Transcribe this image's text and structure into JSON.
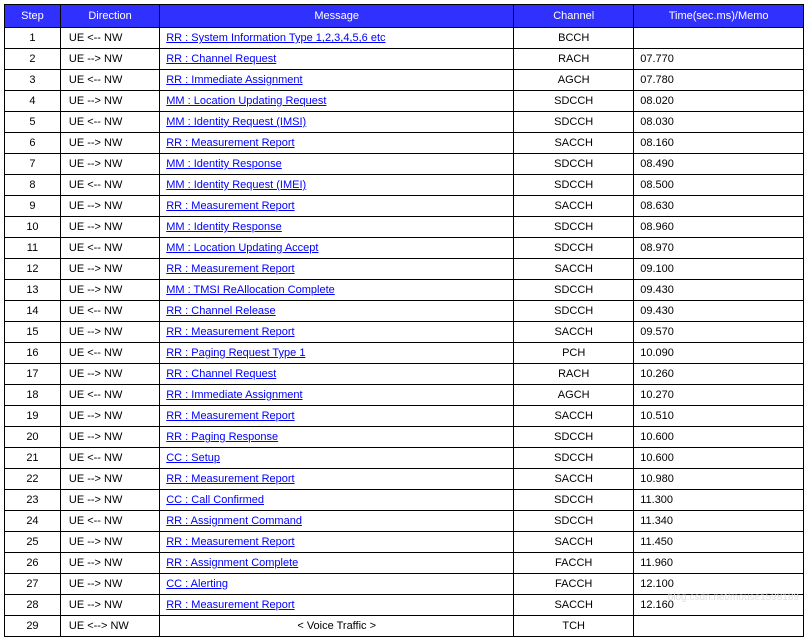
{
  "headers": {
    "step": "Step",
    "direction": "Direction",
    "message": "Message",
    "channel": "Channel",
    "time": "Time(sec.ms)/Memo"
  },
  "rows": [
    {
      "step": "1",
      "dir": "UE <-- NW",
      "msg": "RR  : System Information Type 1,2,3,4,5,6 etc",
      "link": true,
      "chan": "BCCH",
      "time": ""
    },
    {
      "step": "2",
      "dir": "UE --> NW",
      "msg": "RR  : Channel Request",
      "link": true,
      "chan": "RACH",
      "time": "07.770"
    },
    {
      "step": "3",
      "dir": "UE <-- NW",
      "msg": "RR  : Immediate Assignment",
      "link": true,
      "chan": "AGCH",
      "time": "07.780"
    },
    {
      "step": "4",
      "dir": "UE --> NW",
      "msg": "MM : Location Updating Request",
      "link": true,
      "chan": "SDCCH",
      "time": "08.020"
    },
    {
      "step": "5",
      "dir": "UE <-- NW",
      "msg": "MM : Identity Request (IMSI)",
      "link": true,
      "chan": "SDCCH",
      "time": "08.030"
    },
    {
      "step": "6",
      "dir": "UE --> NW",
      "msg": "RR  : Measurement Report",
      "link": true,
      "chan": "SACCH",
      "time": "08.160"
    },
    {
      "step": "7",
      "dir": "UE --> NW",
      "msg": "MM : Identity Response",
      "link": true,
      "chan": "SDCCH",
      "time": "08.490"
    },
    {
      "step": "8",
      "dir": "UE <-- NW",
      "msg": "MM : Identity Request (IMEI)",
      "link": true,
      "chan": "SDCCH",
      "time": "08.500"
    },
    {
      "step": "9",
      "dir": "UE --> NW",
      "msg": "RR  : Measurement Report",
      "link": true,
      "chan": "SACCH",
      "time": "08.630"
    },
    {
      "step": "10",
      "dir": "UE --> NW",
      "msg": "MM : Identity Response",
      "link": true,
      "chan": "SDCCH",
      "time": "08.960"
    },
    {
      "step": "11",
      "dir": "UE <-- NW",
      "msg": "MM : Location Updating Accept",
      "link": true,
      "chan": "SDCCH",
      "time": "08.970"
    },
    {
      "step": "12",
      "dir": "UE --> NW",
      "msg": "RR  : Measurement Report",
      "link": true,
      "chan": "SACCH",
      "time": "09.100"
    },
    {
      "step": "13",
      "dir": "UE --> NW",
      "msg": "MM : TMSI ReAllocation Complete",
      "link": true,
      "chan": "SDCCH",
      "time": "09.430"
    },
    {
      "step": "14",
      "dir": "UE <-- NW",
      "msg": "RR  : Channel Release",
      "link": true,
      "chan": "SDCCH",
      "time": "09.430"
    },
    {
      "step": "15",
      "dir": "UE --> NW",
      "msg": "RR  : Measurement Report",
      "link": true,
      "chan": "SACCH",
      "time": "09.570"
    },
    {
      "step": "16",
      "dir": "UE <-- NW",
      "msg": "RR  : Paging Request Type 1",
      "link": true,
      "chan": "PCH",
      "time": "10.090"
    },
    {
      "step": "17",
      "dir": "UE --> NW",
      "msg": "RR  : Channel Request",
      "link": true,
      "chan": "RACH",
      "time": "10.260"
    },
    {
      "step": "18",
      "dir": "UE <-- NW",
      "msg": "RR  : Immediate Assignment",
      "link": true,
      "chan": "AGCH",
      "time": "10.270"
    },
    {
      "step": "19",
      "dir": "UE --> NW",
      "msg": "RR  : Measurement Report",
      "link": true,
      "chan": "SACCH",
      "time": "10.510"
    },
    {
      "step": "20",
      "dir": "UE --> NW",
      "msg": "RR  : Paging Response",
      "link": true,
      "chan": "SDCCH",
      "time": "10.600"
    },
    {
      "step": "21",
      "dir": "UE <-- NW",
      "msg": "CC  : Setup",
      "link": true,
      "chan": "SDCCH",
      "time": "10.600"
    },
    {
      "step": "22",
      "dir": "UE --> NW",
      "msg": "RR  : Measurement Report",
      "link": true,
      "chan": "SACCH",
      "time": "10.980"
    },
    {
      "step": "23",
      "dir": "UE --> NW",
      "msg": "CC  : Call Confirmed",
      "link": true,
      "chan": "SDCCH",
      "time": "11.300"
    },
    {
      "step": "24",
      "dir": "UE <-- NW",
      "msg": "RR  : Assignment Command",
      "link": true,
      "chan": "SDCCH",
      "time": "11.340"
    },
    {
      "step": "25",
      "dir": "UE --> NW",
      "msg": "RR  : Measurement Report",
      "link": true,
      "chan": "SACCH",
      "time": "11.450"
    },
    {
      "step": "26",
      "dir": "UE --> NW",
      "msg": "RR  : Assignment Complete",
      "link": true,
      "chan": "FACCH",
      "time": "11.960"
    },
    {
      "step": "27",
      "dir": "UE --> NW",
      "msg": "CC  : Alerting",
      "link": true,
      "chan": "FACCH",
      "time": "12.100"
    },
    {
      "step": "28",
      "dir": "UE --> NW",
      "msg": "RR  : Measurement Report",
      "link": true,
      "chan": "SACCH",
      "time": "12.160"
    },
    {
      "step": "29",
      "dir": "UE <--> NW",
      "msg": "< Voice Traffic >",
      "link": false,
      "chan": "TCH",
      "time": ""
    }
  ],
  "watermark": "blog.csdn.net/mouse1598189"
}
